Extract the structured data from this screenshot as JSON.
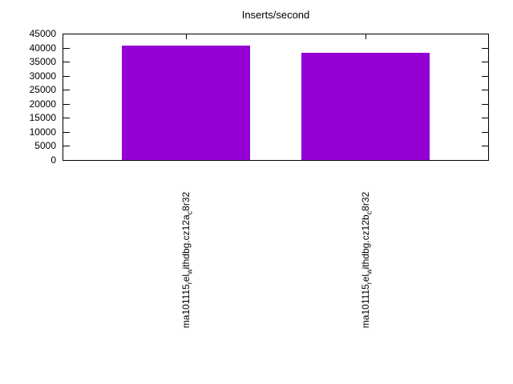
{
  "chart_data": {
    "type": "bar",
    "title": "Inserts/second",
    "categories": [
      "ma101115_rel_withdbg.cz12a_c8r32",
      "ma101115_rel_withdbg.cz12b_c8r32"
    ],
    "values": [
      40600,
      38300
    ],
    "ylim": [
      0,
      45000
    ],
    "ytick_step": 5000,
    "ytick_labels": [
      "0",
      "5000",
      "10000",
      "15000",
      "20000",
      "25000",
      "30000",
      "35000",
      "40000",
      "45000"
    ],
    "bar_color": "#9400d3",
    "axis_color": "#000000",
    "grid": false,
    "legend": "none",
    "xtick_rotation": 90,
    "categories_display": [
      {
        "segments": [
          {
            "text": "ma101115"
          },
          {
            "text": "r",
            "sub": true
          },
          {
            "text": "el"
          },
          {
            "text": "w",
            "sub": true
          },
          {
            "text": "ithdbg.cz12a"
          },
          {
            "text": "c",
            "sub": true
          },
          {
            "text": "8r32"
          }
        ]
      },
      {
        "segments": [
          {
            "text": "ma101115"
          },
          {
            "text": "r",
            "sub": true
          },
          {
            "text": "el"
          },
          {
            "text": "w",
            "sub": true
          },
          {
            "text": "ithdbg.cz12b"
          },
          {
            "text": "c",
            "sub": true
          },
          {
            "text": "8r32"
          }
        ]
      }
    ]
  }
}
